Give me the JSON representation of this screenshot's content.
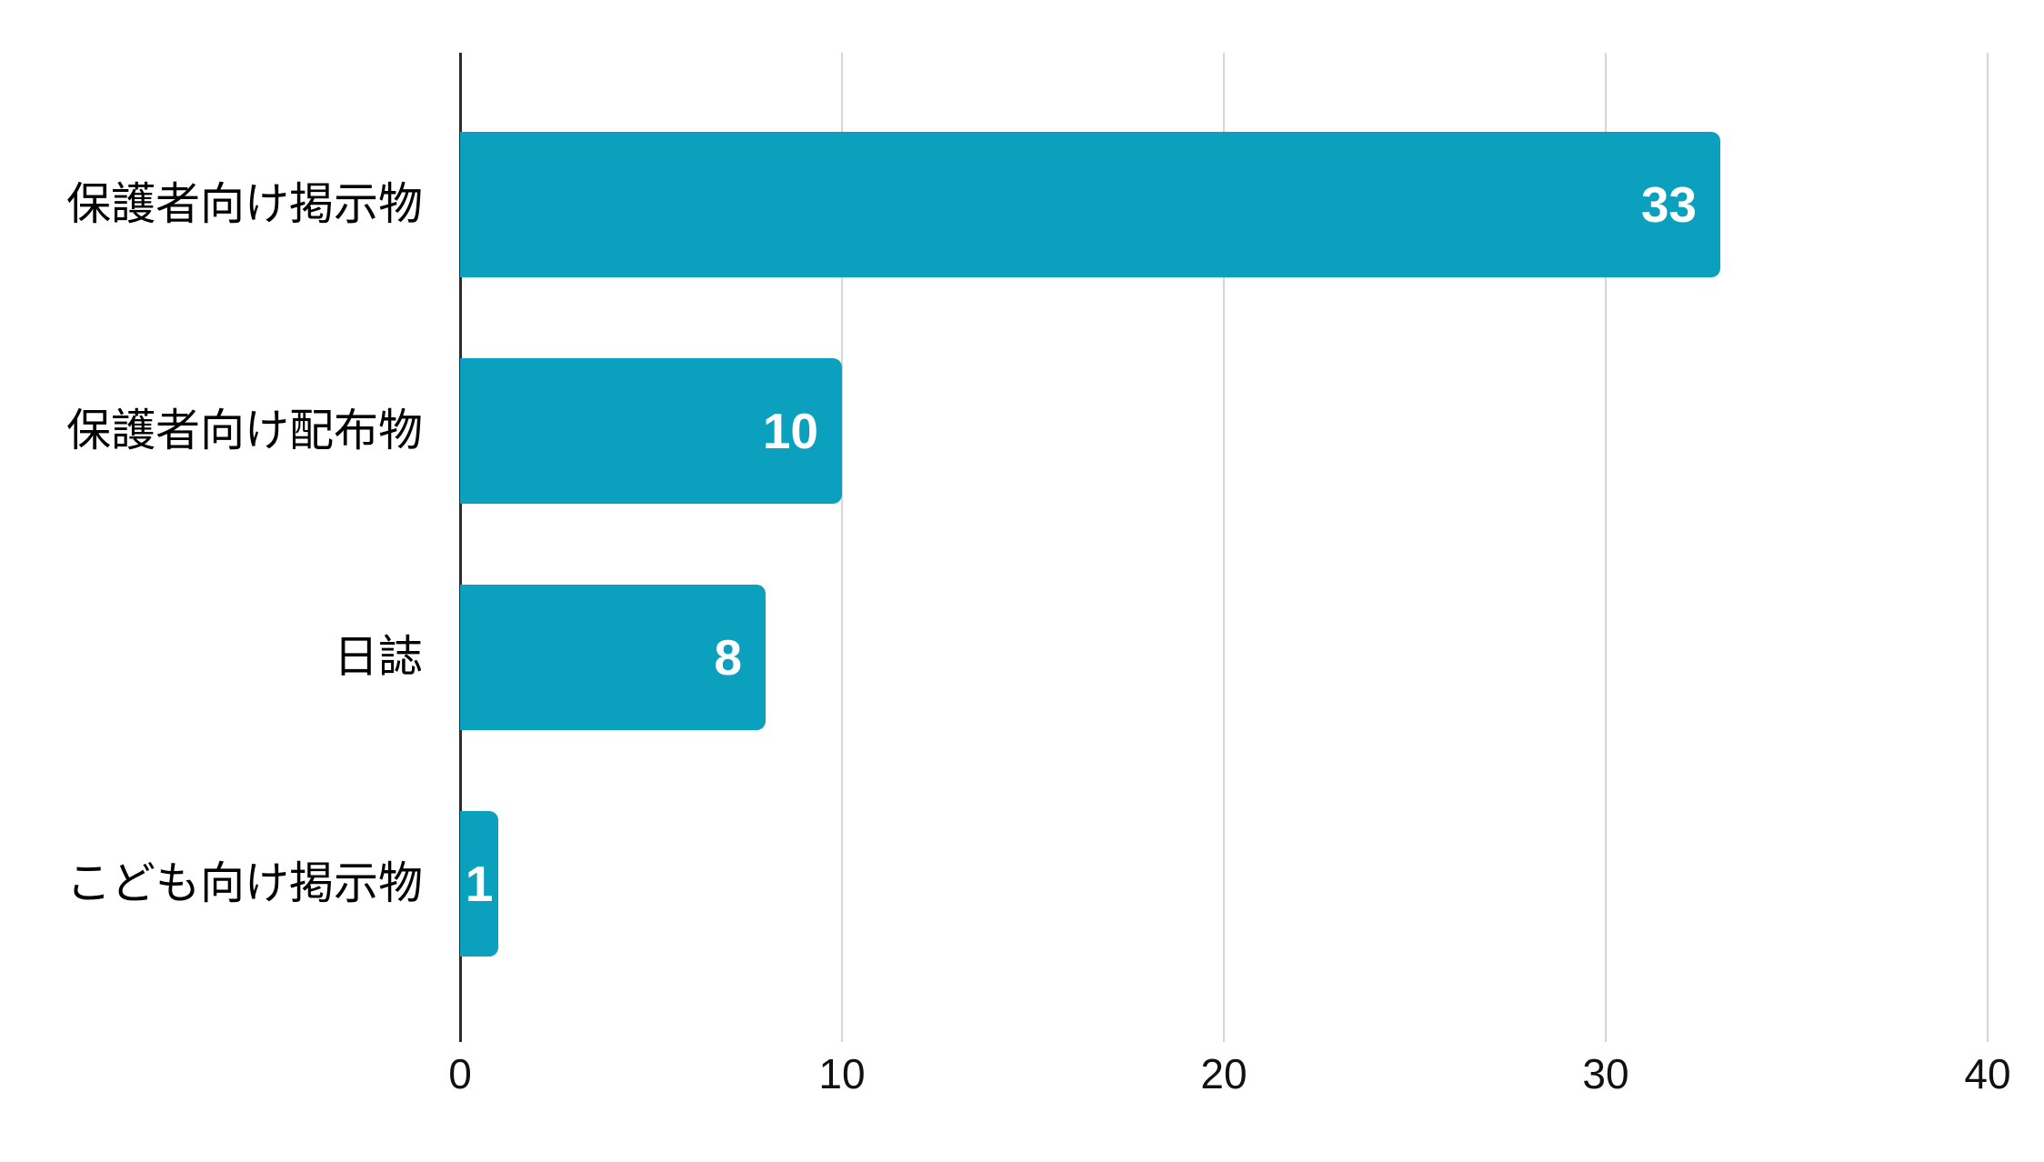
{
  "chart_data": {
    "type": "bar",
    "orientation": "horizontal",
    "title": "",
    "xlabel": "",
    "ylabel": "",
    "categories": [
      "保護者向け掲示物",
      "保護者向け配布物",
      "日誌",
      "こども向け掲示物"
    ],
    "values": [
      33,
      10,
      8,
      1
    ],
    "value_labels": [
      "33",
      "10",
      "8",
      "1"
    ],
    "xticks": [
      "0",
      "10",
      "20",
      "30",
      "40"
    ],
    "xtick_values": [
      0,
      10,
      20,
      30,
      40
    ],
    "xlim": [
      0,
      40
    ],
    "grid": true,
    "legend": false,
    "colors": {
      "bar": "#0AA0BE",
      "value_label": "#ffffff",
      "axis_line": "#2b2b2b",
      "gridline": "#d6d6d6",
      "tick_label": "#111111",
      "category_label": "#000000",
      "background": "#ffffff"
    }
  }
}
